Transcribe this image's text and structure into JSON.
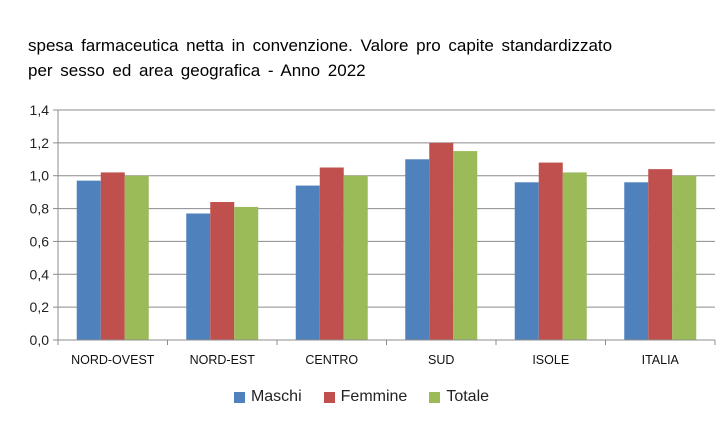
{
  "chart_data": {
    "type": "bar",
    "title_lines": [
      "spesa farmaceutica netta in convenzione. Valore pro capite standardizzato",
      "per sesso ed area geografica - Anno 2022"
    ],
    "xlabel": "",
    "ylabel": "",
    "categories": [
      "NORD-OVEST",
      "NORD-EST",
      "CENTRO",
      "SUD",
      "ISOLE",
      "ITALIA"
    ],
    "series": [
      {
        "name": "Maschi",
        "color": "#4f81bd",
        "values": [
          0.97,
          0.77,
          0.94,
          1.1,
          0.96,
          0.96
        ]
      },
      {
        "name": "Femmine",
        "color": "#c0504d",
        "values": [
          1.02,
          0.84,
          1.05,
          1.2,
          1.08,
          1.04
        ]
      },
      {
        "name": "Totale",
        "color": "#9bbb59",
        "values": [
          1.0,
          0.81,
          1.0,
          1.15,
          1.02,
          1.0
        ]
      }
    ],
    "ylim": [
      0,
      1.4
    ],
    "yticks": [
      "0,0",
      "0,2",
      "0,4",
      "0,6",
      "0,8",
      "1,0",
      "1,2",
      "1,4"
    ],
    "grid": true,
    "legend_position": "bottom"
  }
}
